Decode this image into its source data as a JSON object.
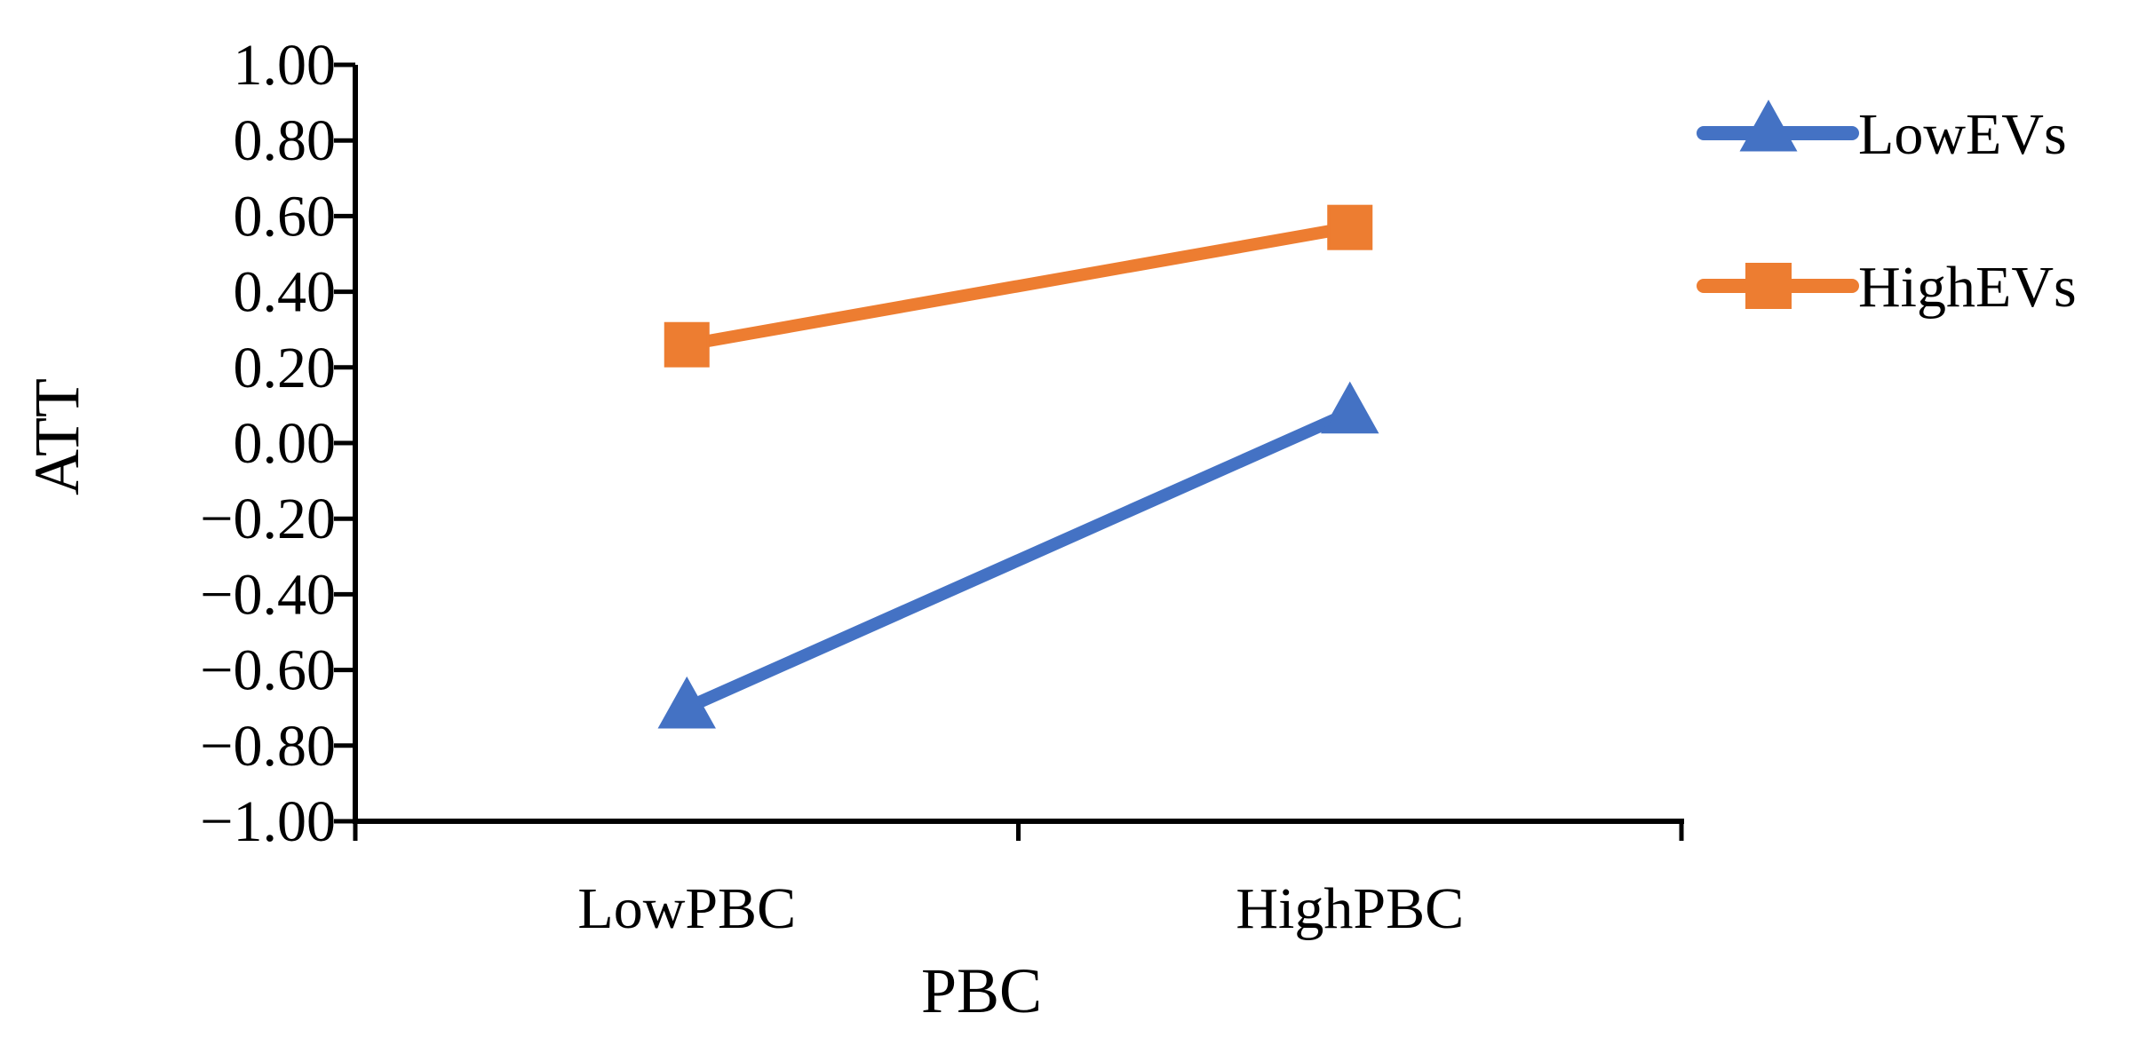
{
  "chart_data": {
    "type": "line",
    "title": "",
    "xlabel": "PBC",
    "ylabel": "ATT",
    "categories": [
      "LowPBC",
      "HighPBC"
    ],
    "ylim": [
      -1.0,
      1.0
    ],
    "ytick_step": 0.2,
    "yticks": [
      "1.00",
      "0.80",
      "0.60",
      "0.40",
      "0.20",
      "0.00",
      "−0.20",
      "−0.40",
      "−0.60",
      "−0.80",
      "−1.00"
    ],
    "grid": false,
    "legend_position": "right",
    "series": [
      {
        "name": "LowEVs",
        "values": [
          -0.7,
          0.08
        ],
        "color": "#4472C4",
        "marker": "triangle"
      },
      {
        "name": "HighEVs",
        "values": [
          0.26,
          0.57
        ],
        "color": "#ED7D31",
        "marker": "square"
      }
    ]
  }
}
